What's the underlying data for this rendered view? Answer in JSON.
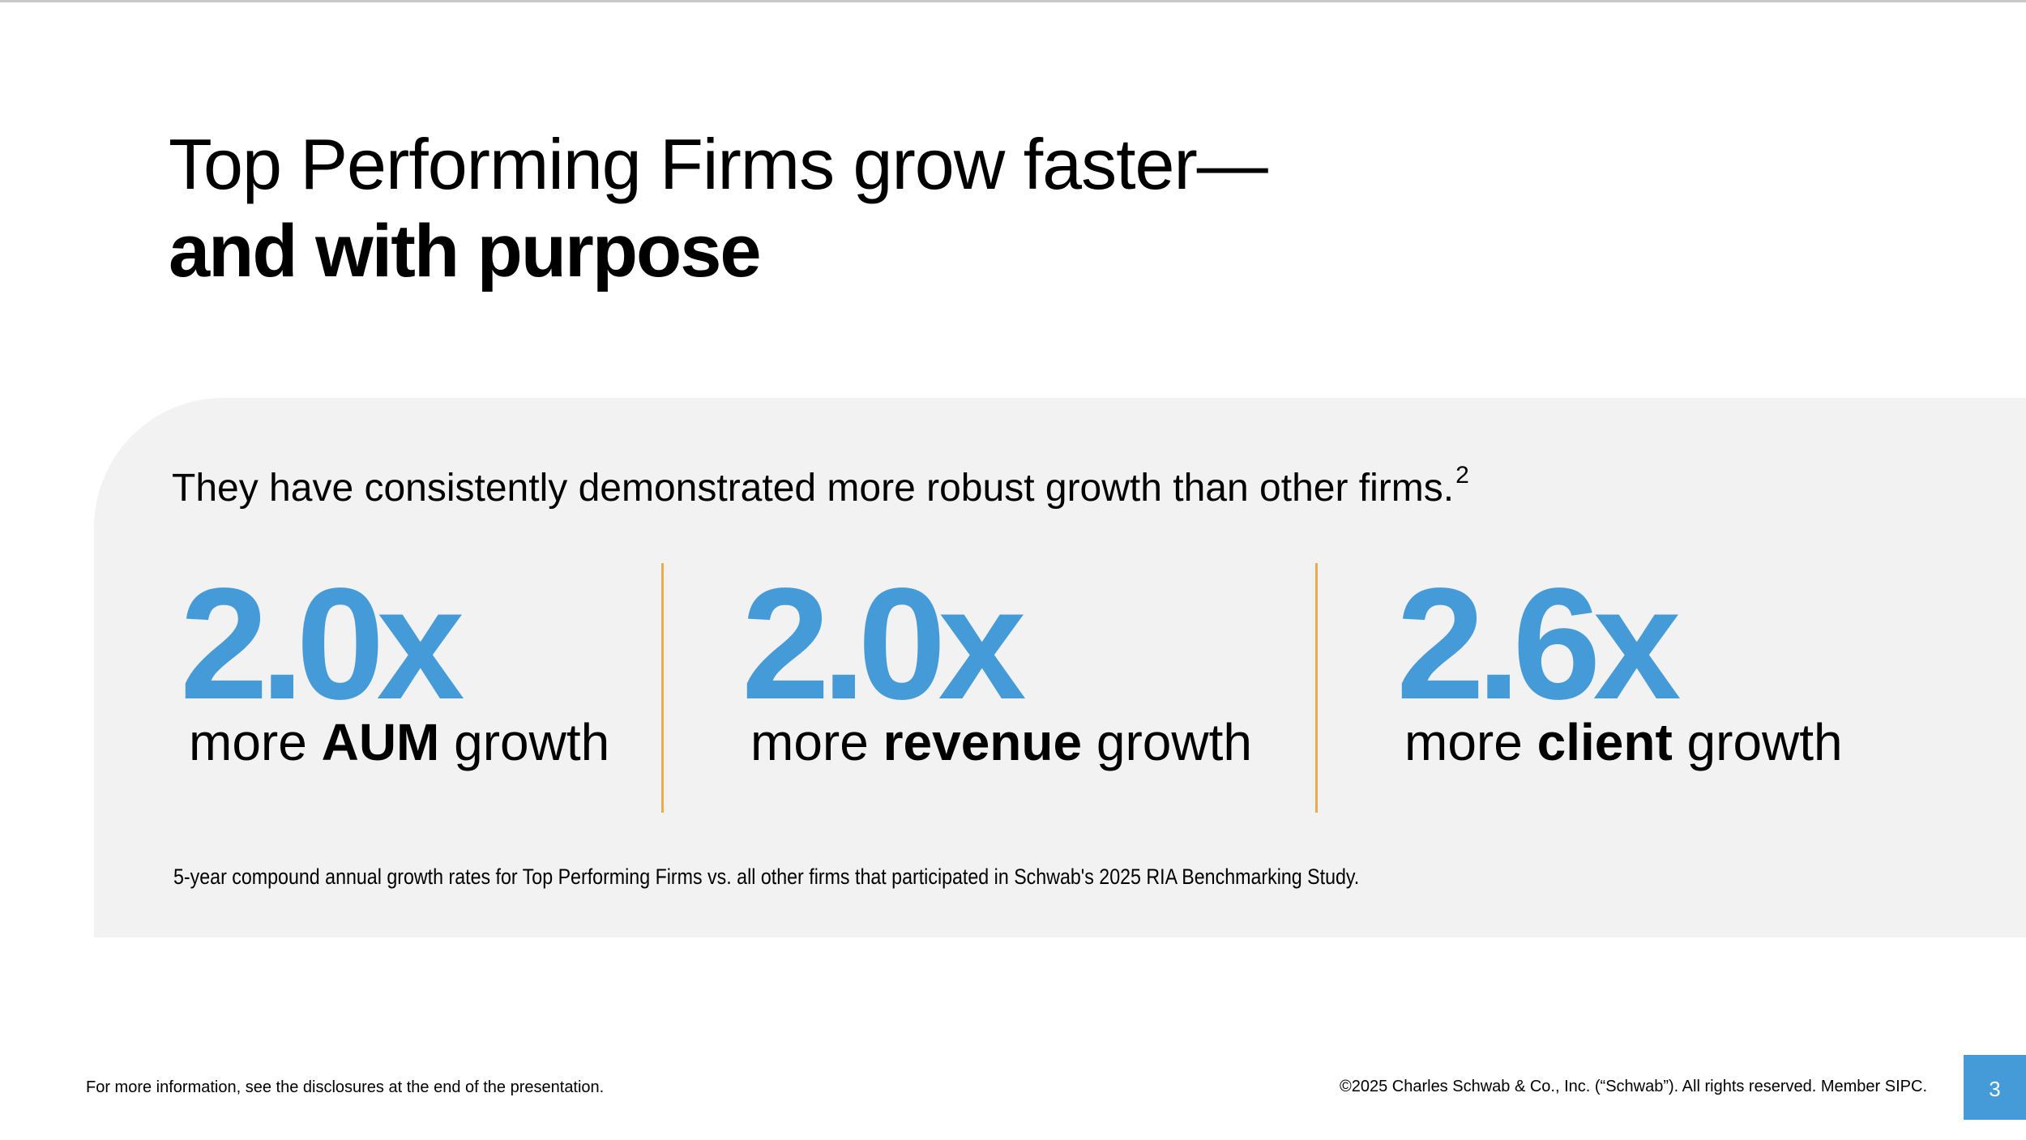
{
  "header": {
    "title_line1": "Top Performing Firms grow faster—",
    "title_line2": "and with purpose"
  },
  "panel": {
    "lead_text": "They have consistently demonstrated more robust growth than other firms.",
    "lead_footnote_ref": "2",
    "stats": [
      {
        "value": "2.0x",
        "prefix": "more ",
        "emphasis": "AUM",
        "suffix": " growth"
      },
      {
        "value": "2.0x",
        "prefix": "more ",
        "emphasis": "revenue",
        "suffix": " growth"
      },
      {
        "value": "2.6x",
        "prefix": "more ",
        "emphasis": "client",
        "suffix": " growth"
      }
    ],
    "footnote": "5-year compound annual growth rates for Top Performing Firms vs. all other firms that participated in Schwab's 2025 RIA Benchmarking Study."
  },
  "footer": {
    "disclosure_note": "For more information, see the disclosures at the end of the presentation.",
    "copyright": "©2025 Charles Schwab & Co., Inc. (“Schwab”). All rights reserved. Member SIPC.",
    "page_number": "3"
  },
  "colors": {
    "accent_blue": "#449bd7",
    "divider_gold": "#e8ab4f",
    "panel_gray": "#f2f2f2"
  }
}
